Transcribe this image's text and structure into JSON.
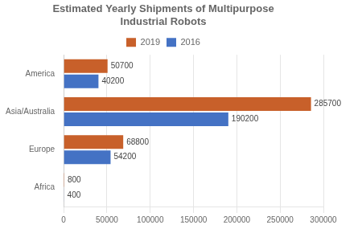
{
  "chart_data": {
    "type": "bar",
    "orientation": "horizontal",
    "title": "Estimated Yearly Shipments of Multipurpose\nIndustrial Robots",
    "categories": [
      "Africa",
      "Europe",
      "Asia/Australia",
      "America"
    ],
    "series": [
      {
        "name": "2019",
        "color": "#c8602a",
        "values": [
          800,
          68800,
          285700,
          50700
        ]
      },
      {
        "name": "2016",
        "color": "#4472c4",
        "values": [
          400,
          54200,
          190200,
          40200
        ]
      }
    ],
    "xlim": [
      0,
      300000
    ],
    "xticks": [
      0,
      50000,
      100000,
      150000,
      200000,
      250000,
      300000
    ],
    "grid": true,
    "legend": "top",
    "data_labels": true
  }
}
